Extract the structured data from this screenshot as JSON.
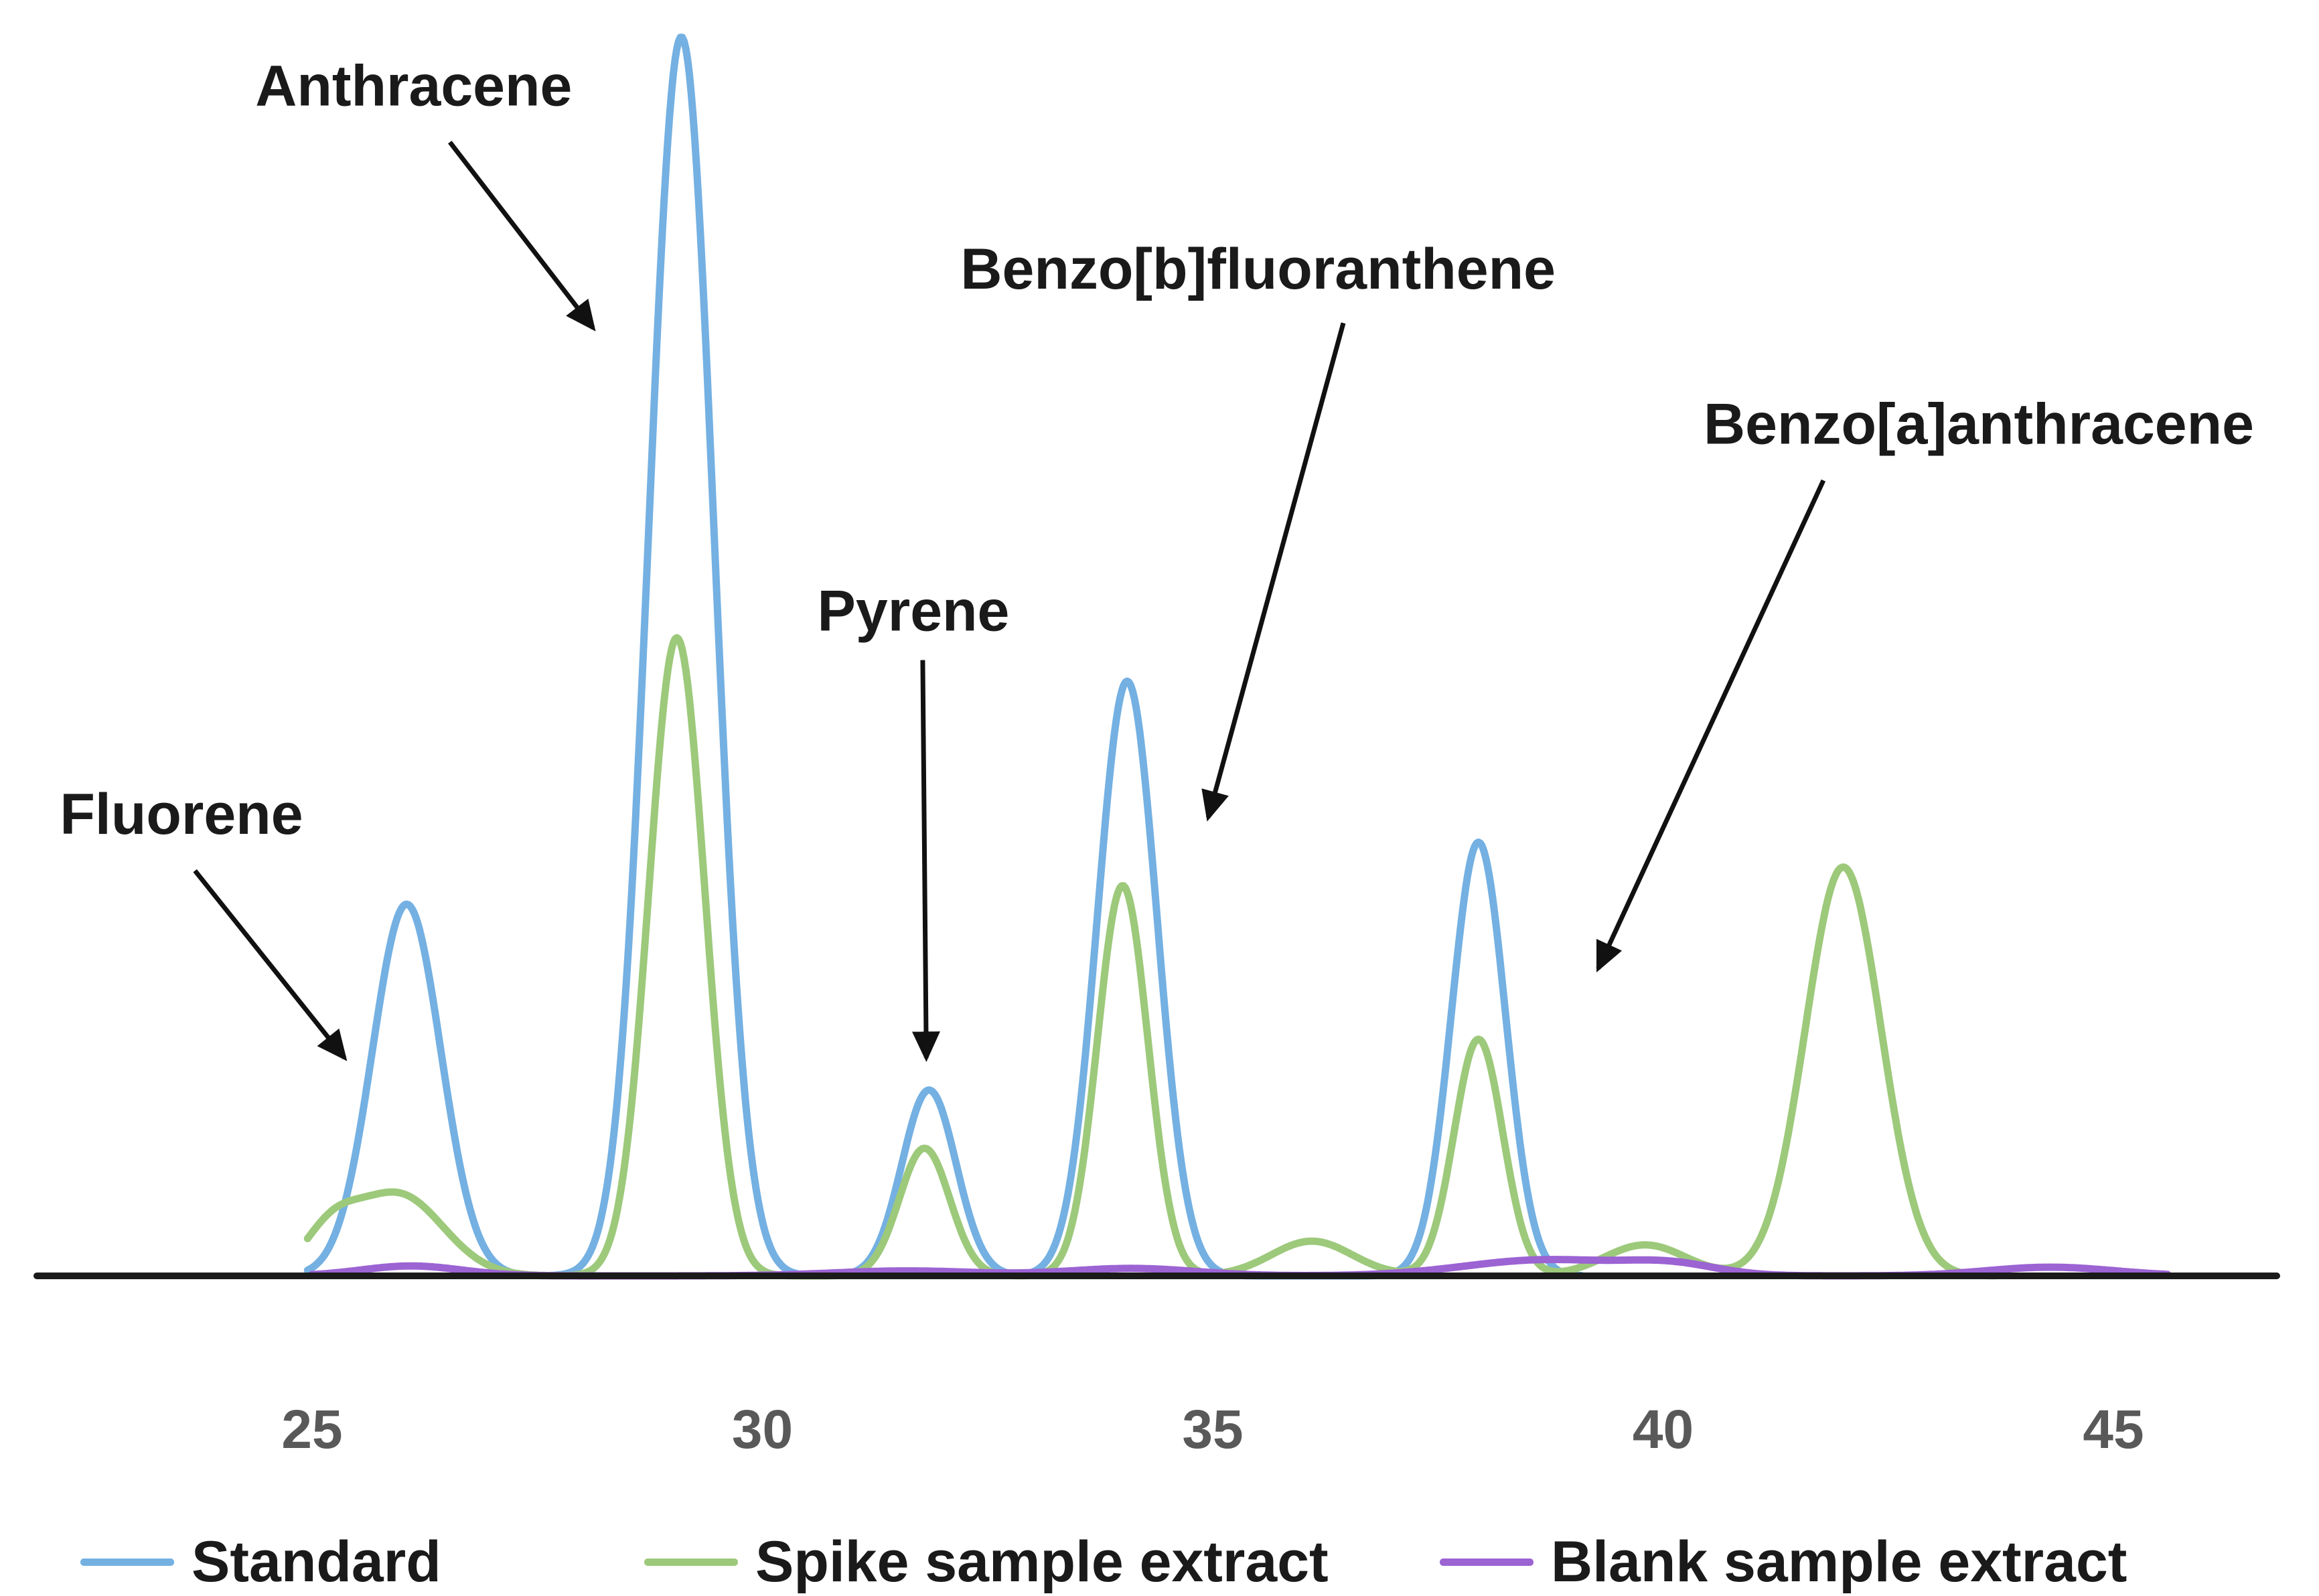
{
  "chart_data": {
    "type": "line",
    "title": "",
    "xlabel": "",
    "ylabel": "",
    "x_ticks": [
      25,
      30,
      35,
      40,
      45
    ],
    "x_range": [
      21.9,
      47.3
    ],
    "y_range": [
      0,
      1.08
    ],
    "grid": false,
    "legend_position": "bottom",
    "axis_color": "#1a1a1a",
    "tick_label_color": "#595959",
    "annotation_color": "#1a1a1a",
    "series": [
      {
        "name": "Standard",
        "color": "#74B0E2",
        "domain": [
          24.95,
          39.1
        ],
        "peaks": [
          {
            "center": 26.05,
            "height": 0.3,
            "sigma": 0.38
          },
          {
            "center": 29.1,
            "height": 1.0,
            "sigma": 0.36
          },
          {
            "center": 31.85,
            "height": 0.15,
            "sigma": 0.3
          },
          {
            "center": 34.05,
            "height": 0.48,
            "sigma": 0.33
          },
          {
            "center": 37.95,
            "height": 0.35,
            "sigma": 0.3
          }
        ]
      },
      {
        "name": "Spike sample extract",
        "color": "#9DC97B",
        "domain": [
          24.95,
          43.7
        ],
        "peaks": [
          {
            "center": 25.2,
            "height": 0.03,
            "sigma": 0.3
          },
          {
            "center": 25.95,
            "height": 0.066,
            "sigma": 0.5
          },
          {
            "center": 29.05,
            "height": 0.515,
            "sigma": 0.31
          },
          {
            "center": 31.8,
            "height": 0.103,
            "sigma": 0.28
          },
          {
            "center": 34.0,
            "height": 0.315,
            "sigma": 0.28
          },
          {
            "center": 36.1,
            "height": 0.028,
            "sigma": 0.45
          },
          {
            "center": 37.95,
            "height": 0.191,
            "sigma": 0.27
          },
          {
            "center": 39.8,
            "height": 0.025,
            "sigma": 0.45
          },
          {
            "center": 42.0,
            "height": 0.33,
            "sigma": 0.42
          }
        ]
      },
      {
        "name": "Blank sample extract",
        "color": "#9C63D3",
        "domain": [
          25.0,
          45.6
        ],
        "peaks": [
          {
            "center": 26.1,
            "height": 0.008,
            "sigma": 0.55
          },
          {
            "center": 31.6,
            "height": 0.004,
            "sigma": 0.8
          },
          {
            "center": 34.1,
            "height": 0.006,
            "sigma": 0.7
          },
          {
            "center": 38.7,
            "height": 0.013,
            "sigma": 0.9
          },
          {
            "center": 40.1,
            "height": 0.008,
            "sigma": 0.5
          },
          {
            "center": 44.3,
            "height": 0.007,
            "sigma": 0.7
          }
        ]
      }
    ],
    "annotations": [
      {
        "label": "Anthracene",
        "label_pos": [
          24.37,
          0.957
        ],
        "arrow": {
          "from": [
            26.53,
            0.915
          ],
          "to": [
            28.12,
            0.765
          ]
        }
      },
      {
        "label": "Benzo[b]fluoranthene",
        "label_pos": [
          32.2,
          0.809
        ],
        "arrow": {
          "from": [
            36.45,
            0.769
          ],
          "to": [
            34.95,
            0.37
          ]
        }
      },
      {
        "label": "Benzo[a]anthracene",
        "label_pos": [
          40.45,
          0.684
        ],
        "arrow": {
          "from": [
            41.78,
            0.642
          ],
          "to": [
            39.28,
            0.248
          ]
        }
      },
      {
        "label": "Pyrene",
        "label_pos": [
          30.61,
          0.533
        ],
        "arrow": {
          "from": [
            31.78,
            0.497
          ],
          "to": [
            31.82,
            0.176
          ]
        }
      },
      {
        "label": "Fluorene",
        "label_pos": [
          22.2,
          0.369
        ],
        "arrow": {
          "from": [
            23.7,
            0.327
          ],
          "to": [
            25.36,
            0.176
          ]
        }
      }
    ]
  }
}
